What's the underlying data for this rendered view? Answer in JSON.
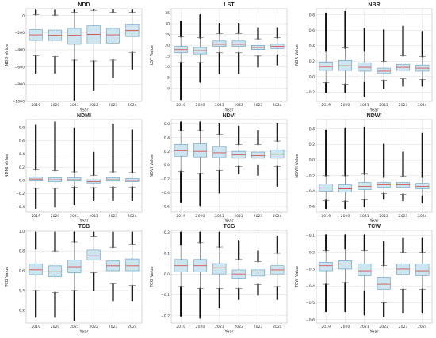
{
  "colors": {
    "box_fill": "#cde5ef",
    "box_edge": "#5b9bc0",
    "median": "#d9534f",
    "grid": "#dcdcdc",
    "outlier": "#111111"
  },
  "chart_data": [
    {
      "type": "box",
      "title": "NDD",
      "xlabel": "Year",
      "ylabel": "NDD Value",
      "categories": [
        "2019",
        "2020",
        "2021",
        "2022",
        "2023",
        "2024"
      ],
      "ylim": [
        -1000,
        80
      ],
      "yticks": [
        -1000,
        -800,
        -600,
        -400,
        -200,
        0
      ],
      "ytick_labels": [
        "−1000",
        "−800",
        "−600",
        "−400",
        "−200",
        "0"
      ],
      "grid": true,
      "boxes": [
        {
          "q1": -290,
          "median": -225,
          "q3": -165,
          "wlo": -470,
          "whi": 10,
          "out_lo": -670,
          "out_hi": 60
        },
        {
          "q1": -290,
          "median": -230,
          "q3": -170,
          "wlo": -480,
          "whi": 5,
          "out_lo": -670,
          "out_hi": 60
        },
        {
          "q1": -335,
          "median": -230,
          "q3": -150,
          "wlo": -520,
          "whi": 40,
          "out_lo": -980,
          "out_hi": 60
        },
        {
          "q1": -330,
          "median": -220,
          "q3": -120,
          "wlo": -530,
          "whi": 60,
          "out_lo": -870,
          "out_hi": 65
        },
        {
          "q1": -320,
          "median": -225,
          "q3": -150,
          "wlo": -520,
          "whi": 40,
          "out_lo": -720,
          "out_hi": 65
        },
        {
          "q1": -245,
          "median": -175,
          "q3": -100,
          "wlo": -430,
          "whi": 40,
          "out_lo": -620,
          "out_hi": 60
        }
      ]
    },
    {
      "type": "box",
      "title": "LST",
      "xlabel": "Year",
      "ylabel": "LST Value",
      "categories": [
        "2019",
        "2020",
        "2021",
        "2022",
        "2023",
        "2024"
      ],
      "ylim": [
        -6,
        37
      ],
      "yticks": [
        0,
        5,
        10,
        15,
        20,
        25,
        30,
        35
      ],
      "ytick_labels": [
        "0",
        "5",
        "10",
        "15",
        "20",
        "25",
        "30",
        "35"
      ],
      "grid": true,
      "boxes": [
        {
          "q1": 16.5,
          "median": 18,
          "q3": 19.5,
          "wlo": 12,
          "whi": 24,
          "out_lo": -5,
          "out_hi": 31
        },
        {
          "q1": 16,
          "median": 17.5,
          "q3": 19,
          "wlo": 12,
          "whi": 23.5,
          "out_lo": 3,
          "out_hi": 34
        },
        {
          "q1": 19.5,
          "median": 20.5,
          "q3": 22,
          "wlo": 16.5,
          "whi": 25.5,
          "out_lo": 7,
          "out_hi": 30
        },
        {
          "q1": 19.5,
          "median": 20.5,
          "q3": 22,
          "wlo": 16.5,
          "whi": 25.5,
          "out_lo": 7,
          "out_hi": 30
        },
        {
          "q1": 18,
          "median": 19,
          "q3": 20,
          "wlo": 15,
          "whi": 23,
          "out_lo": 10,
          "out_hi": 28
        },
        {
          "q1": 18.5,
          "median": 19.5,
          "q3": 20.5,
          "wlo": 15.5,
          "whi": 23.5,
          "out_lo": 11,
          "out_hi": 28
        }
      ]
    },
    {
      "type": "box",
      "title": "NBR",
      "xlabel": "Year",
      "ylabel": "NBR Value",
      "categories": [
        "2019",
        "2020",
        "2021",
        "2022",
        "2023",
        "2024"
      ],
      "ylim": [
        -0.32,
        0.88
      ],
      "yticks": [
        -0.2,
        0.0,
        0.2,
        0.4,
        0.6,
        0.8
      ],
      "ytick_labels": [
        "−0.2",
        "0.0",
        "0.2",
        "0.4",
        "0.6",
        "0.8"
      ],
      "grid": true,
      "boxes": [
        {
          "q1": 0.08,
          "median": 0.13,
          "q3": 0.19,
          "wlo": -0.08,
          "whi": 0.33,
          "out_lo": -0.2,
          "out_hi": 0.82
        },
        {
          "q1": 0.08,
          "median": 0.14,
          "q3": 0.21,
          "wlo": -0.1,
          "whi": 0.37,
          "out_lo": -0.2,
          "out_hi": 0.84
        },
        {
          "q1": 0.07,
          "median": 0.12,
          "q3": 0.18,
          "wlo": -0.07,
          "whi": 0.33,
          "out_lo": -0.25,
          "out_hi": 0.62
        },
        {
          "q1": 0.04,
          "median": 0.07,
          "q3": 0.11,
          "wlo": -0.05,
          "whi": 0.2,
          "out_lo": -0.15,
          "out_hi": 0.6
        },
        {
          "q1": 0.08,
          "median": 0.12,
          "q3": 0.16,
          "wlo": -0.03,
          "whi": 0.27,
          "out_lo": -0.12,
          "out_hi": 0.65
        },
        {
          "q1": 0.07,
          "median": 0.11,
          "q3": 0.15,
          "wlo": -0.04,
          "whi": 0.26,
          "out_lo": -0.12,
          "out_hi": 0.58
        }
      ]
    },
    {
      "type": "box",
      "title": "NDMI",
      "xlabel": "Year",
      "ylabel": "NDMI Value",
      "categories": [
        "2019",
        "2020",
        "2021",
        "2022",
        "2023",
        "2024"
      ],
      "ylim": [
        -0.48,
        0.92
      ],
      "yticks": [
        -0.4,
        -0.2,
        0.0,
        0.2,
        0.4,
        0.6,
        0.8
      ],
      "ytick_labels": [
        "−0.4",
        "−0.2",
        "0.0",
        "0.2",
        "0.4",
        "0.6",
        "0.8"
      ],
      "grid": true,
      "boxes": [
        {
          "q1": -0.01,
          "median": 0.02,
          "q3": 0.05,
          "wlo": -0.12,
          "whi": 0.16,
          "out_lo": -0.42,
          "out_hi": 0.83
        },
        {
          "q1": -0.02,
          "median": 0.01,
          "q3": 0.04,
          "wlo": -0.12,
          "whi": 0.15,
          "out_lo": -0.4,
          "out_hi": 0.88
        },
        {
          "q1": -0.01,
          "median": 0.01,
          "q3": 0.04,
          "wlo": -0.1,
          "whi": 0.13,
          "out_lo": -0.36,
          "out_hi": 0.78
        },
        {
          "q1": -0.04,
          "median": -0.02,
          "q3": 0.01,
          "wlo": -0.11,
          "whi": 0.08,
          "out_lo": -0.3,
          "out_hi": 0.42
        },
        {
          "q1": -0.01,
          "median": 0.01,
          "q3": 0.04,
          "wlo": -0.1,
          "whi": 0.13,
          "out_lo": -0.3,
          "out_hi": 0.84
        },
        {
          "q1": -0.02,
          "median": 0.0,
          "q3": 0.03,
          "wlo": -0.1,
          "whi": 0.12,
          "out_lo": -0.3,
          "out_hi": 0.76
        }
      ]
    },
    {
      "type": "box",
      "title": "NDVI",
      "xlabel": "Year",
      "ylabel": "NDVI Value",
      "categories": [
        "2019",
        "2020",
        "2021",
        "2022",
        "2023",
        "2024"
      ],
      "ylim": [
        -0.68,
        0.66
      ],
      "yticks": [
        -0.6,
        -0.4,
        -0.2,
        0.0,
        0.2,
        0.4,
        0.6
      ],
      "ytick_labels": [
        "−0.6",
        "−0.4",
        "−0.2",
        "0.0",
        "0.2",
        "0.4",
        "0.6"
      ],
      "grid": true,
      "boxes": [
        {
          "q1": 0.13,
          "median": 0.21,
          "q3": 0.3,
          "wlo": -0.09,
          "whi": 0.5,
          "out_lo": -0.53,
          "out_hi": 0.62
        },
        {
          "q1": 0.12,
          "median": 0.2,
          "q3": 0.31,
          "wlo": -0.12,
          "whi": 0.5,
          "out_lo": -0.58,
          "out_hi": 0.62
        },
        {
          "q1": 0.11,
          "median": 0.18,
          "q3": 0.27,
          "wlo": -0.08,
          "whi": 0.45,
          "out_lo": -0.4,
          "out_hi": 0.6
        },
        {
          "q1": 0.1,
          "median": 0.15,
          "q3": 0.2,
          "wlo": -0.02,
          "whi": 0.3,
          "out_lo": -0.12,
          "out_hi": 0.56
        },
        {
          "q1": 0.1,
          "median": 0.14,
          "q3": 0.19,
          "wlo": 0.0,
          "whi": 0.3,
          "out_lo": -0.14,
          "out_hi": 0.5
        },
        {
          "q1": 0.1,
          "median": 0.16,
          "q3": 0.22,
          "wlo": -0.02,
          "whi": 0.35,
          "out_lo": -0.3,
          "out_hi": 0.6
        }
      ]
    },
    {
      "type": "box",
      "title": "NDWI",
      "xlabel": "Year",
      "ylabel": "NDWI Value",
      "categories": [
        "2019",
        "2020",
        "2021",
        "2022",
        "2023",
        "2024"
      ],
      "ylim": [
        -0.67,
        0.52
      ],
      "yticks": [
        -0.6,
        -0.4,
        -0.2,
        0.0,
        0.2,
        0.4
      ],
      "ytick_labels": [
        "−0.6",
        "−0.4",
        "−0.2",
        "0.0",
        "0.2",
        "0.4"
      ],
      "grid": true,
      "boxes": [
        {
          "q1": -0.4,
          "median": -0.36,
          "q3": -0.31,
          "wlo": -0.52,
          "whi": -0.2,
          "out_lo": -0.62,
          "out_hi": 0.38
        },
        {
          "q1": -0.41,
          "median": -0.37,
          "q3": -0.32,
          "wlo": -0.53,
          "whi": -0.2,
          "out_lo": -0.62,
          "out_hi": 0.4
        },
        {
          "q1": -0.38,
          "median": -0.34,
          "q3": -0.29,
          "wlo": -0.51,
          "whi": -0.18,
          "out_lo": -0.6,
          "out_hi": 0.42
        },
        {
          "q1": -0.35,
          "median": -0.32,
          "q3": -0.29,
          "wlo": -0.43,
          "whi": -0.22,
          "out_lo": -0.5,
          "out_hi": 0.2
        },
        {
          "q1": -0.35,
          "median": -0.32,
          "q3": -0.29,
          "wlo": -0.44,
          "whi": -0.21,
          "out_lo": -0.52,
          "out_hi": 0.1
        },
        {
          "q1": -0.37,
          "median": -0.34,
          "q3": -0.3,
          "wlo": -0.46,
          "whi": -0.22,
          "out_lo": -0.55,
          "out_hi": 0.34
        }
      ]
    },
    {
      "type": "box",
      "title": "TCB",
      "xlabel": "Year",
      "ylabel": "TCB Value",
      "categories": [
        "2019",
        "2020",
        "2021",
        "2022",
        "2023",
        "2024"
      ],
      "ylim": [
        0.07,
        1.01
      ],
      "yticks": [
        0.2,
        0.4,
        0.6,
        0.8,
        1.0
      ],
      "ytick_labels": [
        "0.2",
        "0.4",
        "0.6",
        "0.8",
        "1.0"
      ],
      "grid": true,
      "boxes": [
        {
          "q1": 0.56,
          "median": 0.61,
          "q3": 0.67,
          "wlo": 0.4,
          "whi": 0.82,
          "out_lo": 0.13,
          "out_hi": 0.99
        },
        {
          "q1": 0.54,
          "median": 0.59,
          "q3": 0.65,
          "wlo": 0.38,
          "whi": 0.8,
          "out_lo": 0.13,
          "out_hi": 0.99
        },
        {
          "q1": 0.58,
          "median": 0.64,
          "q3": 0.71,
          "wlo": 0.4,
          "whi": 0.89,
          "out_lo": 0.1,
          "out_hi": 0.99
        },
        {
          "q1": 0.71,
          "median": 0.75,
          "q3": 0.81,
          "wlo": 0.58,
          "whi": 0.95,
          "out_lo": 0.4,
          "out_hi": 0.99
        },
        {
          "q1": 0.6,
          "median": 0.65,
          "q3": 0.7,
          "wlo": 0.47,
          "whi": 0.84,
          "out_lo": 0.3,
          "out_hi": 0.99
        },
        {
          "q1": 0.6,
          "median": 0.65,
          "q3": 0.72,
          "wlo": 0.45,
          "whi": 0.87,
          "out_lo": 0.3,
          "out_hi": 0.99
        }
      ]
    },
    {
      "type": "box",
      "title": "TCG",
      "xlabel": "Year",
      "ylabel": "TCG Value",
      "categories": [
        "2019",
        "2020",
        "2021",
        "2022",
        "2023",
        "2024"
      ],
      "ylim": [
        -0.235,
        0.21
      ],
      "yticks": [
        -0.2,
        -0.1,
        0.0,
        0.1,
        0.2
      ],
      "ytick_labels": [
        "−0.2",
        "−0.1",
        "0.0",
        "0.1",
        "0.2"
      ],
      "grid": true,
      "boxes": [
        {
          "q1": 0.01,
          "median": 0.04,
          "q3": 0.07,
          "wlo": -0.06,
          "whi": 0.14,
          "out_lo": -0.2,
          "out_hi": 0.2
        },
        {
          "q1": 0.01,
          "median": 0.04,
          "q3": 0.07,
          "wlo": -0.07,
          "whi": 0.15,
          "out_lo": -0.21,
          "out_hi": 0.2
        },
        {
          "q1": 0.0,
          "median": 0.03,
          "q3": 0.05,
          "wlo": -0.07,
          "whi": 0.13,
          "out_lo": -0.16,
          "out_hi": 0.2
        },
        {
          "q1": -0.02,
          "median": 0.0,
          "q3": 0.02,
          "wlo": -0.07,
          "whi": 0.07,
          "out_lo": -0.12,
          "out_hi": 0.16
        },
        {
          "q1": -0.01,
          "median": 0.01,
          "q3": 0.02,
          "wlo": -0.05,
          "whi": 0.06,
          "out_lo": -0.1,
          "out_hi": 0.11
        },
        {
          "q1": 0.0,
          "median": 0.02,
          "q3": 0.04,
          "wlo": -0.06,
          "whi": 0.1,
          "out_lo": -0.12,
          "out_hi": 0.18
        }
      ]
    },
    {
      "type": "box",
      "title": "TCW",
      "xlabel": "Year",
      "ylabel": "TCW Value",
      "categories": [
        "2019",
        "2020",
        "2021",
        "2022",
        "2023",
        "2024"
      ],
      "ylim": [
        -0.62,
        -0.07
      ],
      "yticks": [
        -0.6,
        -0.5,
        -0.4,
        -0.3,
        -0.2,
        -0.1
      ],
      "ytick_labels": [
        "−0.6",
        "−0.5",
        "−0.4",
        "−0.3",
        "−0.2",
        "−0.1"
      ],
      "grid": true,
      "boxes": [
        {
          "q1": -0.31,
          "median": -0.28,
          "q3": -0.26,
          "wlo": -0.39,
          "whi": -0.19,
          "out_lo": -0.55,
          "out_hi": -0.1
        },
        {
          "q1": -0.3,
          "median": -0.27,
          "q3": -0.25,
          "wlo": -0.38,
          "whi": -0.18,
          "out_lo": -0.55,
          "out_hi": -0.1
        },
        {
          "q1": -0.34,
          "median": -0.31,
          "q3": -0.27,
          "wlo": -0.43,
          "whi": -0.19,
          "out_lo": -0.57,
          "out_hi": -0.1
        },
        {
          "q1": -0.42,
          "median": -0.39,
          "q3": -0.35,
          "wlo": -0.5,
          "whi": -0.28,
          "out_lo": -0.58,
          "out_hi": -0.14
        },
        {
          "q1": -0.33,
          "median": -0.3,
          "q3": -0.27,
          "wlo": -0.42,
          "whi": -0.2,
          "out_lo": -0.56,
          "out_hi": -0.12
        },
        {
          "q1": -0.34,
          "median": -0.31,
          "q3": -0.27,
          "wlo": -0.42,
          "whi": -0.2,
          "out_lo": -0.56,
          "out_hi": -0.12
        }
      ]
    }
  ]
}
